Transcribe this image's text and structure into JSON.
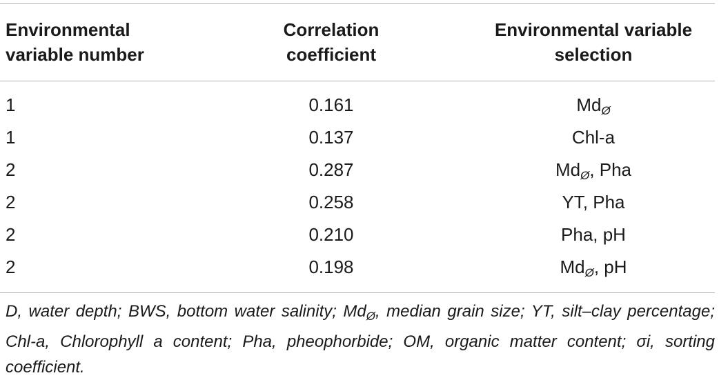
{
  "table": {
    "headers": [
      [
        "Environmental",
        "variable number"
      ],
      [
        "Correlation",
        "coefficient"
      ],
      [
        "Environmental variable",
        "selection"
      ]
    ],
    "rows": [
      {
        "number": "1",
        "coef": "0.161",
        "sel_main": "Md",
        "sel_sub": "Ø",
        "sel_rest": ""
      },
      {
        "number": "1",
        "coef": "0.137",
        "sel_main": "Chl-a",
        "sel_sub": "",
        "sel_rest": ""
      },
      {
        "number": "2",
        "coef": "0.287",
        "sel_main": "Md",
        "sel_sub": "Ø",
        "sel_rest": ", Pha"
      },
      {
        "number": "2",
        "coef": "0.258",
        "sel_main": "YT, Pha",
        "sel_sub": "",
        "sel_rest": ""
      },
      {
        "number": "2",
        "coef": "0.210",
        "sel_main": "Pha, pH",
        "sel_sub": "",
        "sel_rest": ""
      },
      {
        "number": "2",
        "coef": "0.198",
        "sel_main": "Md",
        "sel_sub": "Ø",
        "sel_rest": ", pH"
      }
    ]
  },
  "footnote": {
    "part1": "D, water depth; BWS, bottom water salinity; Md",
    "sub": "Ø",
    "part2": ", median grain size; YT, silt–clay percentage; Chl-a, Chlorophyll a content; Pha, pheophorbide; OM, organic matter content; σi, sorting coefficient."
  }
}
